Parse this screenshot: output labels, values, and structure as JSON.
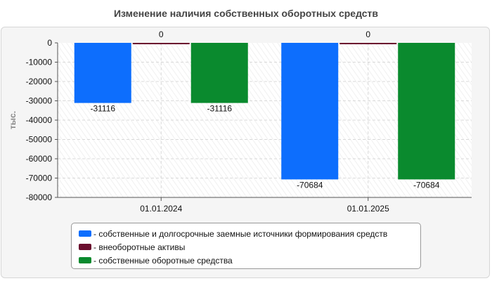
{
  "chart_data": {
    "type": "bar",
    "title": "Изменение наличия собственных оборотных средств",
    "ylabel": "тыс.",
    "xlabel": "",
    "categories": [
      "01.01.2024",
      "01.01.2025"
    ],
    "series": [
      {
        "name": "- собственные и долгосрочные заемные источники формирования средств",
        "values": [
          -31116,
          -70684
        ],
        "color": "#0d6efd"
      },
      {
        "name": "- внеоборотные активы",
        "values": [
          0,
          0
        ],
        "color": "#6b0f2f"
      },
      {
        "name": "- собственные оборотные средства",
        "values": [
          -31116,
          -70684
        ],
        "color": "#0a8a2e"
      }
    ],
    "ylim": [
      -80000,
      0
    ],
    "yticks": [
      0,
      -10000,
      -20000,
      -30000,
      -40000,
      -50000,
      -60000,
      -70000,
      -80000
    ],
    "data_labels": [
      [
        "-31116",
        "-70684"
      ],
      [
        "0",
        "0"
      ],
      [
        "-31116",
        "-70684"
      ]
    ],
    "grid": true,
    "legend_position": "bottom"
  }
}
